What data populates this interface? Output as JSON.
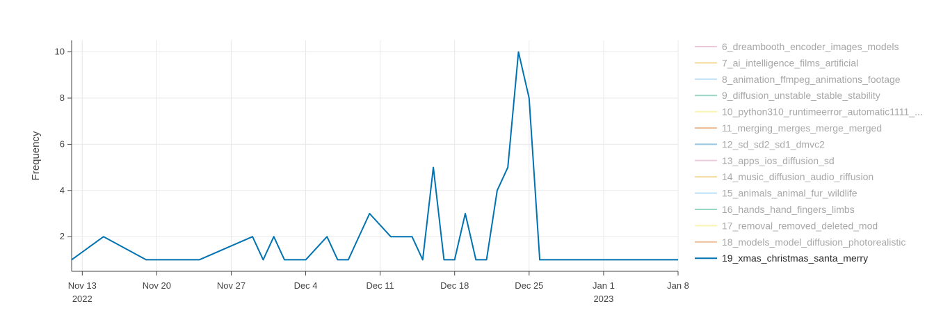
{
  "chart_data": {
    "type": "line",
    "ylabel": "Frequency",
    "xlabel": "",
    "xlim": [
      "2022-11-12",
      "2023-01-08"
    ],
    "ylim": [
      0.5,
      10.5
    ],
    "grid": true,
    "legend_placement": "right",
    "x_ticks": [
      {
        "date": "2022-11-13",
        "label": "Nov 13",
        "sublabel": "2022"
      },
      {
        "date": "2022-11-20",
        "label": "Nov 20",
        "sublabel": ""
      },
      {
        "date": "2022-11-27",
        "label": "Nov 27",
        "sublabel": ""
      },
      {
        "date": "2022-12-04",
        "label": "Dec 4",
        "sublabel": ""
      },
      {
        "date": "2022-12-11",
        "label": "Dec 11",
        "sublabel": ""
      },
      {
        "date": "2022-12-18",
        "label": "Dec 18",
        "sublabel": ""
      },
      {
        "date": "2022-12-25",
        "label": "Dec 25",
        "sublabel": ""
      },
      {
        "date": "2023-01-01",
        "label": "Jan 1",
        "sublabel": "2023"
      },
      {
        "date": "2023-01-08",
        "label": "Jan 8",
        "sublabel": ""
      }
    ],
    "y_ticks": [
      2,
      4,
      6,
      8,
      10
    ],
    "series": [
      {
        "name": "6_dreambooth_encoder_images_models",
        "color": "#cc79a7",
        "muted": true,
        "x": [],
        "y": []
      },
      {
        "name": "7_ai_intelligence_films_artificial",
        "color": "#e69f00",
        "muted": true,
        "x": [],
        "y": []
      },
      {
        "name": "8_animation_ffmpeg_animations_footage",
        "color": "#56b4e9",
        "muted": true,
        "x": [],
        "y": []
      },
      {
        "name": "9_diffusion_unstable_stable_stability",
        "color": "#009e73",
        "muted": true,
        "x": [],
        "y": []
      },
      {
        "name": "10_python310_runtimeerror_automatic1111_...",
        "color": "#f0e442",
        "muted": true,
        "x": [],
        "y": []
      },
      {
        "name": "11_merging_merges_merge_merged",
        "color": "#d55e00",
        "muted": true,
        "x": [],
        "y": []
      },
      {
        "name": "12_sd_sd2_sd1_dmvc2",
        "color": "#0072b2",
        "muted": true,
        "x": [],
        "y": []
      },
      {
        "name": "13_apps_ios_diffusion_sd",
        "color": "#cc79a7",
        "muted": true,
        "x": [],
        "y": []
      },
      {
        "name": "14_music_diffusion_audio_riffusion",
        "color": "#e69f00",
        "muted": true,
        "x": [],
        "y": []
      },
      {
        "name": "15_animals_animal_fur_wildlife",
        "color": "#56b4e9",
        "muted": true,
        "x": [],
        "y": []
      },
      {
        "name": "16_hands_hand_fingers_limbs",
        "color": "#009e73",
        "muted": true,
        "x": [],
        "y": []
      },
      {
        "name": "17_removal_removed_deleted_mod",
        "color": "#f0e442",
        "muted": true,
        "x": [],
        "y": []
      },
      {
        "name": "18_models_model_diffusion_photorealistic",
        "color": "#d55e00",
        "muted": true,
        "x": [],
        "y": []
      },
      {
        "name": "19_xmas_christmas_santa_merry",
        "color": "#0072b2",
        "muted": false,
        "x": [
          "2022-11-12",
          "2022-11-15",
          "2022-11-19",
          "2022-11-24",
          "2022-11-29",
          "2022-11-30",
          "2022-12-01",
          "2022-12-02",
          "2022-12-04",
          "2022-12-06",
          "2022-12-07",
          "2022-12-08",
          "2022-12-10",
          "2022-12-12",
          "2022-12-14",
          "2022-12-15",
          "2022-12-16",
          "2022-12-17",
          "2022-12-18",
          "2022-12-19",
          "2022-12-20",
          "2022-12-21",
          "2022-12-22",
          "2022-12-23",
          "2022-12-24",
          "2022-12-25",
          "2022-12-26",
          "2023-01-08"
        ],
        "y": [
          1,
          2,
          1,
          1,
          2,
          1,
          2,
          1,
          1,
          2,
          1,
          1,
          3,
          2,
          2,
          1,
          5,
          1,
          1,
          3,
          1,
          1,
          4,
          5,
          10,
          8,
          1,
          1
        ]
      }
    ]
  }
}
